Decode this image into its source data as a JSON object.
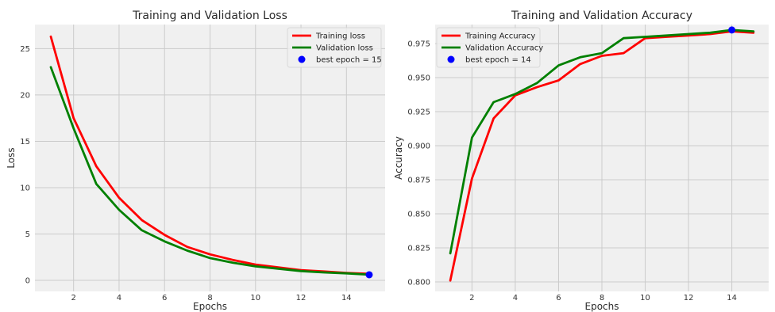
{
  "colors": {
    "figure_bg": "#ffffff",
    "axes_bg": "#f0f0f0",
    "grid": "#cbcbcb",
    "training": "#ff0000",
    "validation": "#008000",
    "best": "#0000ff"
  },
  "chart_data": [
    {
      "type": "line",
      "title": "Training and Validation Loss",
      "xlabel": "Epochs",
      "ylabel": "Loss",
      "xlim": [
        0.3,
        15.7
      ],
      "ylim": [
        -1.2,
        27.6
      ],
      "xticks": [
        2,
        4,
        6,
        8,
        10,
        12,
        14
      ],
      "yticks": [
        0,
        5,
        10,
        15,
        20,
        25
      ],
      "ytick_labels": [
        "0",
        "5",
        "10",
        "15",
        "20",
        "25"
      ],
      "grid": true,
      "legend_position": "top-right",
      "x": [
        1,
        2,
        3,
        4,
        5,
        6,
        7,
        8,
        9,
        10,
        11,
        12,
        13,
        14,
        15
      ],
      "series": [
        {
          "name": "Training loss",
          "color": "#ff0000",
          "values": [
            26.3,
            17.5,
            12.3,
            8.9,
            6.5,
            4.9,
            3.6,
            2.8,
            2.2,
            1.7,
            1.4,
            1.1,
            0.95,
            0.8,
            0.7
          ]
        },
        {
          "name": "Validation loss",
          "color": "#008000",
          "values": [
            23.0,
            16.4,
            10.4,
            7.6,
            5.4,
            4.2,
            3.2,
            2.4,
            1.9,
            1.5,
            1.25,
            1.0,
            0.85,
            0.75,
            0.6
          ]
        }
      ],
      "best_point": {
        "label": "best epoch = 15",
        "x": 15,
        "y": 0.6,
        "color": "#0000ff"
      }
    },
    {
      "type": "line",
      "title": "Training and Validation Accuracy",
      "xlabel": "Epochs",
      "ylabel": "Accuracy",
      "xlim": [
        0.3,
        15.7
      ],
      "ylim": [
        0.793,
        0.989
      ],
      "xticks": [
        2,
        4,
        6,
        8,
        10,
        12,
        14
      ],
      "yticks": [
        0.8,
        0.825,
        0.85,
        0.875,
        0.9,
        0.925,
        0.95,
        0.975
      ],
      "ytick_labels": [
        "0.800",
        "0.825",
        "0.850",
        "0.875",
        "0.900",
        "0.925",
        "0.950",
        "0.975"
      ],
      "grid": true,
      "legend_position": "top-left",
      "x": [
        1,
        2,
        3,
        4,
        5,
        6,
        7,
        8,
        9,
        10,
        11,
        12,
        13,
        14,
        15
      ],
      "series": [
        {
          "name": "Training Accuracy",
          "color": "#ff0000",
          "values": [
            0.801,
            0.876,
            0.92,
            0.937,
            0.943,
            0.948,
            0.96,
            0.966,
            0.968,
            0.979,
            0.98,
            0.981,
            0.982,
            0.984,
            0.983
          ]
        },
        {
          "name": "Validation Accuracy",
          "color": "#008000",
          "values": [
            0.821,
            0.906,
            0.932,
            0.938,
            0.946,
            0.959,
            0.965,
            0.968,
            0.979,
            0.98,
            0.981,
            0.982,
            0.983,
            0.985,
            0.984
          ]
        }
      ],
      "best_point": {
        "label": "best epoch = 14",
        "x": 14,
        "y": 0.985,
        "color": "#0000ff"
      }
    }
  ]
}
